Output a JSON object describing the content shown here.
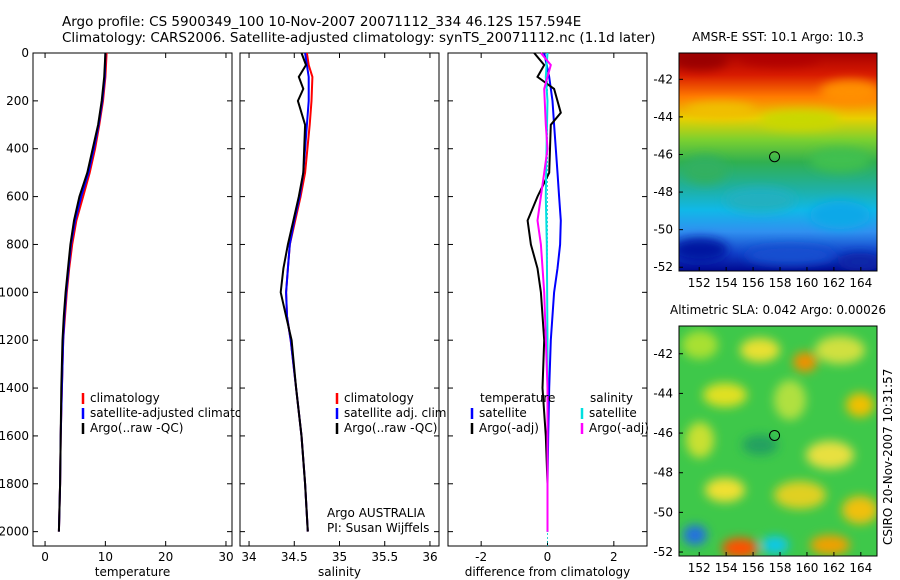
{
  "header": {
    "line1": "Argo profile: CS 5900349_100 10-Nov-2007 20071112_334 46.12S 157.594E",
    "line2": "Climatology: CARS2006. Satellite-adjusted climatology: synTS_20071112.nc (1.1d later)"
  },
  "side_credit": "CSIRO 20-Nov-2007 10:31:57",
  "chart_data": [
    {
      "type": "line",
      "xlabel": "temperature",
      "xlim": [
        -2,
        31
      ],
      "xticks": [
        0,
        10,
        20,
        30
      ],
      "ylim": [
        0,
        2060
      ],
      "yticks": [
        0,
        200,
        400,
        600,
        800,
        1000,
        1200,
        1400,
        1600,
        1800,
        2000
      ],
      "y_reversed": true,
      "legend": [
        "climatology",
        "satellite-adjusted climatology",
        "Argo(..raw -QC)"
      ],
      "series": [
        {
          "name": "climatology",
          "color": "#ff0000",
          "x": [
            10.2,
            10.0,
            9.6,
            9.0,
            8.3,
            7.4,
            6.3,
            5.2,
            4.5,
            4.0,
            3.6,
            3.3,
            3.0,
            2.8,
            2.6,
            2.5,
            2.4,
            2.3
          ],
          "y": [
            0,
            100,
            200,
            300,
            400,
            500,
            600,
            700,
            800,
            900,
            1000,
            1100,
            1200,
            1400,
            1600,
            1800,
            1900,
            2000
          ]
        },
        {
          "name": "satellite-adjusted climatology",
          "color": "#0000ff",
          "x": [
            10.0,
            9.9,
            9.5,
            8.9,
            8.1,
            7.2,
            6.0,
            5.0,
            4.3,
            3.9,
            3.5,
            3.2,
            3.0,
            2.8,
            2.6,
            2.5,
            2.4,
            2.3
          ],
          "y": [
            0,
            100,
            200,
            300,
            400,
            500,
            600,
            700,
            800,
            900,
            1000,
            1100,
            1200,
            1400,
            1600,
            1800,
            1900,
            2000
          ]
        },
        {
          "name": "Argo(..raw -QC)",
          "color": "#000000",
          "x": [
            10.0,
            9.8,
            9.4,
            8.8,
            7.9,
            7.0,
            5.7,
            4.8,
            4.2,
            3.8,
            3.4,
            3.1,
            2.9,
            2.7,
            2.6,
            2.5,
            2.4,
            2.3
          ],
          "y": [
            0,
            100,
            200,
            300,
            400,
            500,
            600,
            700,
            800,
            900,
            1000,
            1100,
            1200,
            1400,
            1600,
            1800,
            1900,
            2000
          ]
        }
      ]
    },
    {
      "type": "line",
      "xlabel": "salinity",
      "xlim": [
        33.9,
        36.1
      ],
      "xticks": [
        34,
        34.5,
        35,
        35.5,
        36
      ],
      "ylim": [
        0,
        2060
      ],
      "y_reversed": true,
      "legend": [
        "climatology",
        "satellite adj. clim.",
        "Argo(..raw -QC)"
      ],
      "annotation": [
        "Argo AUSTRALIA",
        "PI: Susan Wijffels"
      ],
      "series": [
        {
          "name": "climatology",
          "color": "#ff0000",
          "x": [
            34.64,
            34.66,
            34.7,
            34.69,
            34.67,
            34.62,
            34.57,
            34.51,
            34.45,
            34.43,
            34.41,
            34.42,
            34.46,
            34.52,
            34.58,
            34.62,
            34.65
          ],
          "y": [
            0,
            50,
            100,
            200,
            300,
            500,
            600,
            700,
            800,
            900,
            1000,
            1100,
            1200,
            1400,
            1600,
            1800,
            2000
          ]
        },
        {
          "name": "satellite adj. clim.",
          "color": "#0000ff",
          "x": [
            34.62,
            34.64,
            34.66,
            34.66,
            34.64,
            34.6,
            34.56,
            34.5,
            34.45,
            34.43,
            34.41,
            34.42,
            34.46,
            34.52,
            34.58,
            34.62,
            34.65
          ],
          "y": [
            0,
            50,
            100,
            200,
            300,
            500,
            600,
            700,
            800,
            900,
            1000,
            1100,
            1200,
            1400,
            1600,
            1800,
            2000
          ]
        },
        {
          "name": "Argo(..raw -QC)",
          "color": "#000000",
          "x": [
            34.58,
            34.63,
            34.55,
            34.6,
            34.54,
            34.62,
            34.6,
            34.55,
            34.49,
            34.43,
            34.38,
            34.35,
            34.41,
            34.47,
            34.52,
            34.58,
            34.62,
            34.65
          ],
          "y": [
            0,
            50,
            100,
            150,
            200,
            300,
            500,
            600,
            700,
            800,
            900,
            1000,
            1100,
            1200,
            1400,
            1600,
            1800,
            2000
          ]
        }
      ]
    },
    {
      "type": "line",
      "xlabel": "difference from climatology",
      "xlim": [
        -3,
        3
      ],
      "xticks": [
        -2,
        0,
        2
      ],
      "ylim": [
        0,
        2060
      ],
      "y_reversed": true,
      "legend": [
        "temperature",
        "satellite",
        "Argo(-adj)",
        "salinity",
        "satellite",
        "Argo(-adj)"
      ],
      "series": [
        {
          "name": "temperature satellite",
          "color": "#0000ff",
          "x": [
            -0.1,
            0.05,
            0.15,
            0.2,
            0.25,
            0.3,
            0.35,
            0.4,
            0.38,
            0.3,
            0.2,
            0.1,
            0.05,
            0.02,
            0.0,
            0.0
          ],
          "y": [
            0,
            100,
            200,
            300,
            400,
            500,
            600,
            700,
            800,
            900,
            1000,
            1200,
            1400,
            1600,
            1800,
            2000
          ]
        },
        {
          "name": "temperature Argo(-adj)",
          "color": "#000000",
          "x": [
            -0.4,
            -0.1,
            -0.3,
            0.2,
            0.4,
            0.1,
            0.05,
            -0.3,
            -0.6,
            -0.5,
            -0.3,
            -0.2,
            -0.1,
            -0.15,
            -0.05,
            0.0,
            0.0
          ],
          "y": [
            0,
            50,
            100,
            150,
            250,
            300,
            500,
            600,
            700,
            800,
            900,
            1000,
            1200,
            1400,
            1600,
            1800,
            2000
          ]
        },
        {
          "name": "salinity satellite",
          "color": "#00e0e0",
          "x": [
            0.0,
            -0.05,
            0.0,
            -0.03,
            -0.05,
            -0.02,
            0.0,
            0.0,
            0.0
          ],
          "y": [
            0,
            100,
            200,
            400,
            600,
            800,
            1200,
            1600,
            2000
          ]
        },
        {
          "name": "salinity Argo(-adj)",
          "color": "#ff00ff",
          "x": [
            -0.2,
            0.1,
            -0.1,
            -0.05,
            0.0,
            -0.1,
            -0.3,
            -0.2,
            -0.1,
            0.0,
            0.0
          ],
          "y": [
            0,
            50,
            150,
            300,
            400,
            500,
            700,
            800,
            1000,
            1400,
            2000
          ]
        }
      ]
    },
    {
      "type": "heatmap",
      "title": "AMSR-E SST: 10.1 Argo: 10.3",
      "xlim": [
        150.5,
        165.2
      ],
      "xticks": [
        152,
        154,
        156,
        158,
        160,
        162,
        164
      ],
      "ylim": [
        -52.2,
        -40.6
      ],
      "yticks": [
        -42,
        -44,
        -46,
        -48,
        -50,
        -52
      ],
      "marker": {
        "lon": 157.594,
        "lat": -46.12
      }
    },
    {
      "type": "heatmap",
      "title": "Altimetric SLA: 0.042 Argo: 0.00026",
      "xlim": [
        150.5,
        165.2
      ],
      "xticks": [
        152,
        154,
        156,
        158,
        160,
        162,
        164
      ],
      "ylim": [
        -52.2,
        -40.6
      ],
      "yticks": [
        -42,
        -44,
        -46,
        -48,
        -50,
        -52
      ],
      "marker": {
        "lon": 157.594,
        "lat": -46.12
      }
    }
  ]
}
